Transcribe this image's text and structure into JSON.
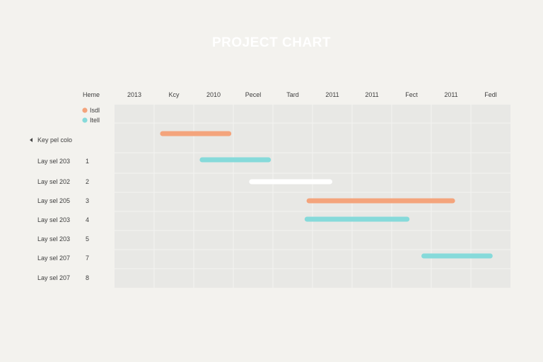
{
  "chart_data": {
    "type": "gantt",
    "title": "PROJECT CHART",
    "column_header_left": "Heme",
    "columns": [
      "2013",
      "Kcy",
      "2010",
      "Pecel",
      "Tard",
      "2011",
      "2011",
      "Fect",
      "2011",
      "Fedl"
    ],
    "legend": [
      {
        "label": "Isdl",
        "color": "#f4a47c"
      },
      {
        "label": "Itell",
        "color": "#86dada"
      }
    ],
    "legend_placement": "top-left",
    "rows": [
      {
        "label": "Key pel colo",
        "index": "",
        "collapsed_marker": true
      },
      {
        "label": "Lay sel 203",
        "index": "1"
      },
      {
        "label": "Lay sel 202",
        "index": "2"
      },
      {
        "label": "Lay sel 205",
        "index": "3"
      },
      {
        "label": "Lay sel 203",
        "index": "4"
      },
      {
        "label": "Lay sel 203",
        "index": "5"
      },
      {
        "label": "Lay sel 207",
        "index": "7"
      },
      {
        "label": "Lay sel 207",
        "index": "8"
      }
    ],
    "tasks": [
      {
        "row": 0,
        "start": 1.15,
        "end": 2.95,
        "color": "#f4a47c"
      },
      {
        "row": 1,
        "start": 2.15,
        "end": 3.95,
        "color": "#86dada"
      },
      {
        "row": 2,
        "start": 3.4,
        "end": 5.5,
        "color": "#ffffff"
      },
      {
        "row": 3,
        "start": 4.85,
        "end": 8.6,
        "color": "#f4a47c"
      },
      {
        "row": 4,
        "start": 4.8,
        "end": 7.45,
        "color": "#86dada"
      },
      {
        "row": 6,
        "start": 7.75,
        "end": 9.55,
        "color": "#86dada"
      }
    ],
    "grid": true
  }
}
